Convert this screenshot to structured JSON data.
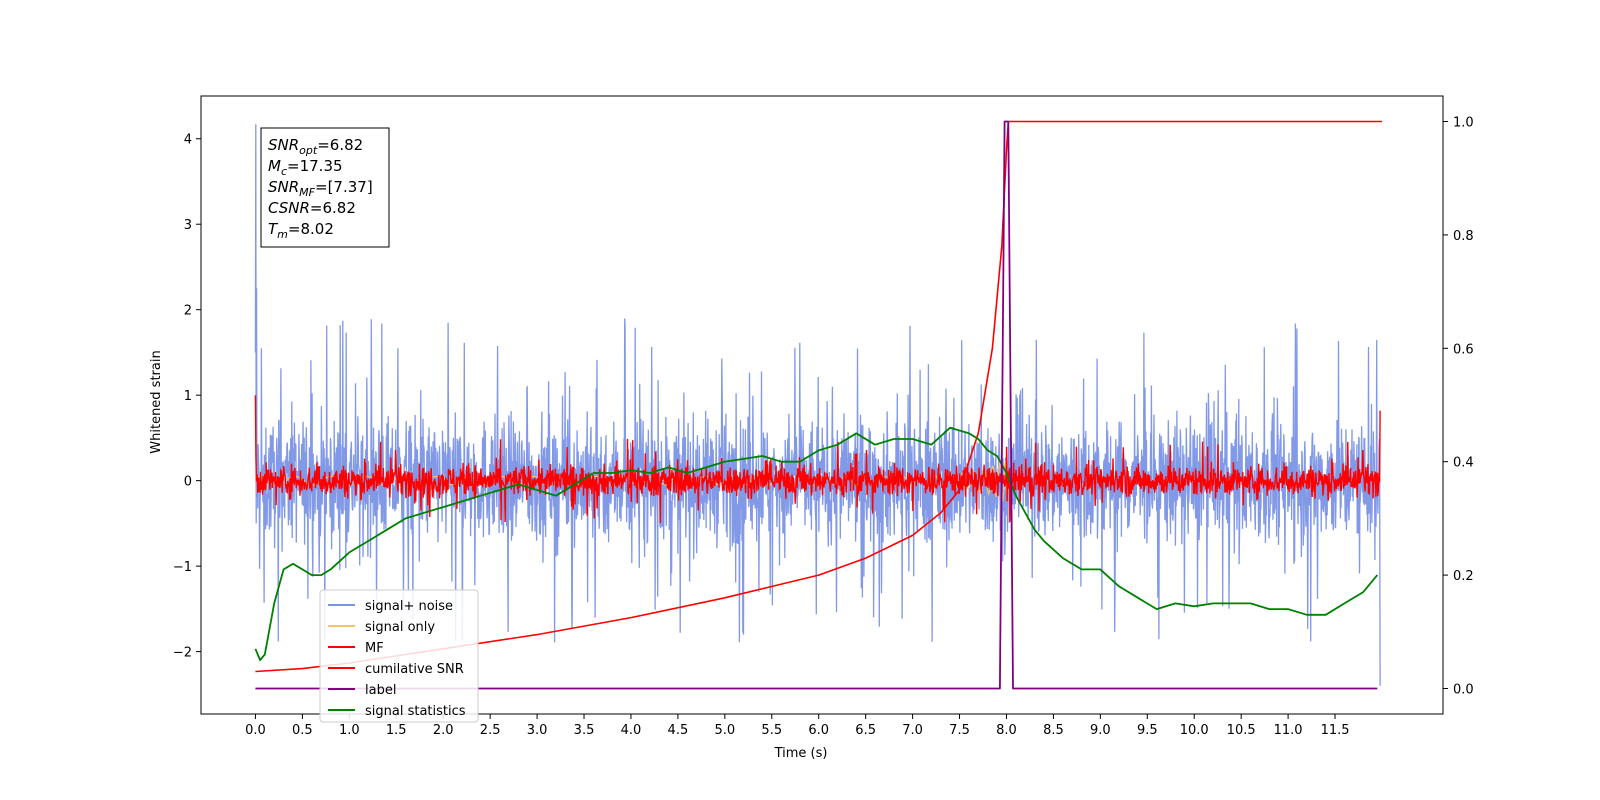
{
  "chart_data": {
    "type": "line",
    "xlabel": "Time (s)",
    "ylabel": "Whitened strain",
    "xlim": [
      -0.58,
      12.65
    ],
    "ylim": [
      -2.73,
      4.5
    ],
    "y2lim": [
      -0.045,
      1.045
    ],
    "x_ticks": [
      "0.0",
      "0.5",
      "1.0",
      "1.5",
      "2.0",
      "2.5",
      "3.0",
      "3.5",
      "4.0",
      "4.5",
      "5.0",
      "5.5",
      "6.0",
      "6.5",
      "7.0",
      "7.5",
      "8.0",
      "8.5",
      "9.0",
      "9.5",
      "10.0",
      "10.5",
      "11.0",
      "11.5"
    ],
    "y_ticks": [
      -2,
      -1,
      0,
      1,
      2,
      3,
      4
    ],
    "y2_ticks": [
      "0.0",
      "0.2",
      "0.4",
      "0.6",
      "0.8",
      "1.0"
    ],
    "legend_position": "lower-left",
    "annotation": [
      {
        "sym": "SNR",
        "sub": "opt",
        "rest": "=6.82"
      },
      {
        "sym": "M",
        "sub": "c",
        "rest": "=17.35"
      },
      {
        "sym": "SNR",
        "sub": "MF",
        "rest": "=[7.37]"
      },
      {
        "sym": "CSNR",
        "sub": "",
        "rest": "=6.82"
      },
      {
        "sym": "T",
        "sub": "m",
        "rest": "=8.02"
      }
    ],
    "series": [
      {
        "name": "signal+ noise",
        "color": "#7a94e6",
        "axis": "left",
        "kind": "noise",
        "t_start": 0.0,
        "t_end": 11.98,
        "amplitude_typical": 0.6,
        "amplitude_peak": 1.9,
        "notes": "initial spike to 4.17 at t=0"
      },
      {
        "name": "signal only",
        "color": "#f5c26b",
        "axis": "left",
        "kind": "chirp",
        "t_start": 0.0,
        "t_end": 8.02,
        "amplitude_typical": 0.05,
        "amplitude_peak": 0.3
      },
      {
        "name": "MF",
        "color": "#ff0000",
        "axis": "left",
        "kind": "noise",
        "t_start": 0.0,
        "t_end": 11.98,
        "amplitude_typical": 0.18,
        "amplitude_peak": 0.5,
        "edge_values": [
          1.0,
          0.82
        ]
      },
      {
        "name": "cumilative SNR",
        "color": "#ff0000",
        "axis": "right",
        "kind": "line",
        "x": [
          0.0,
          0.5,
          1.0,
          2.0,
          3.0,
          4.0,
          5.0,
          6.0,
          6.5,
          7.0,
          7.3,
          7.5,
          7.7,
          7.85,
          7.95,
          8.0,
          8.02,
          12.0
        ],
        "y": [
          0.03,
          0.035,
          0.045,
          0.07,
          0.095,
          0.125,
          0.16,
          0.2,
          0.23,
          0.27,
          0.31,
          0.35,
          0.45,
          0.6,
          0.78,
          0.95,
          1.0,
          1.0
        ]
      },
      {
        "name": "label",
        "color": "#800080",
        "axis": "right",
        "kind": "line",
        "x": [
          0.0,
          7.93,
          7.98,
          8.02,
          8.07,
          11.95
        ],
        "y": [
          0.0,
          0.0,
          1.0,
          1.0,
          0.0,
          0.0
        ]
      },
      {
        "name": "signal statistics",
        "color": "#008000",
        "axis": "right",
        "kind": "line",
        "x": [
          0.0,
          0.05,
          0.1,
          0.2,
          0.3,
          0.4,
          0.5,
          0.6,
          0.7,
          0.8,
          1.0,
          1.2,
          1.4,
          1.6,
          1.8,
          2.0,
          2.2,
          2.4,
          2.6,
          2.8,
          3.0,
          3.2,
          3.4,
          3.6,
          3.8,
          4.0,
          4.2,
          4.4,
          4.6,
          4.8,
          5.0,
          5.2,
          5.4,
          5.6,
          5.8,
          6.0,
          6.2,
          6.4,
          6.6,
          6.8,
          7.0,
          7.2,
          7.4,
          7.6,
          7.7,
          7.8,
          7.9,
          8.0,
          8.1,
          8.2,
          8.3,
          8.4,
          8.6,
          8.8,
          9.0,
          9.2,
          9.4,
          9.6,
          9.8,
          10.0,
          10.2,
          10.4,
          10.6,
          10.8,
          11.0,
          11.2,
          11.4,
          11.6,
          11.8,
          11.95
        ],
        "y": [
          0.07,
          0.05,
          0.06,
          0.15,
          0.21,
          0.22,
          0.21,
          0.2,
          0.2,
          0.21,
          0.24,
          0.26,
          0.28,
          0.3,
          0.31,
          0.32,
          0.33,
          0.34,
          0.35,
          0.36,
          0.35,
          0.34,
          0.36,
          0.38,
          0.38,
          0.385,
          0.38,
          0.39,
          0.38,
          0.39,
          0.4,
          0.405,
          0.41,
          0.4,
          0.4,
          0.42,
          0.43,
          0.45,
          0.43,
          0.44,
          0.44,
          0.43,
          0.46,
          0.45,
          0.44,
          0.42,
          0.41,
          0.38,
          0.34,
          0.31,
          0.28,
          0.26,
          0.23,
          0.21,
          0.21,
          0.18,
          0.16,
          0.14,
          0.15,
          0.145,
          0.15,
          0.15,
          0.15,
          0.14,
          0.14,
          0.13,
          0.13,
          0.15,
          0.17,
          0.2
        ]
      }
    ]
  }
}
